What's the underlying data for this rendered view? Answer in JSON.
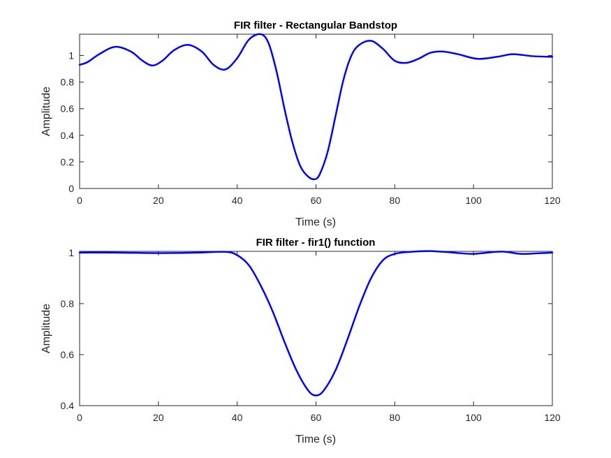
{
  "chart_data": [
    {
      "type": "line",
      "title": "FIR filter - Rectangular Bandstop",
      "xlabel": "Time (s)",
      "ylabel": "Amplitude",
      "xlim": [
        0,
        120
      ],
      "ylim": [
        0,
        1.16
      ],
      "xticks": [
        0,
        20,
        40,
        60,
        80,
        100,
        120
      ],
      "yticks": [
        0,
        0.2,
        0.4,
        0.6,
        0.8,
        1
      ],
      "xtick_labels": [
        "0",
        "20",
        "40",
        "60",
        "80",
        "100",
        "120"
      ],
      "ytick_labels": [
        "0",
        "0.2",
        "0.4",
        "0.6",
        "0.8",
        "1"
      ],
      "grid": false,
      "line_color": "#0000ff",
      "series": [
        {
          "x": [
            0,
            2,
            5,
            9,
            13,
            16,
            18.5,
            21,
            24,
            27.5,
            31,
            34,
            37,
            40,
            43,
            46,
            48,
            50,
            52,
            54,
            56,
            58,
            59.7,
            61,
            63,
            65,
            67,
            69,
            71,
            74,
            77,
            80,
            83,
            86,
            89,
            92,
            96,
            101,
            106,
            110,
            115,
            120
          ],
          "y": [
            0.93,
            0.95,
            1.01,
            1.065,
            1.03,
            0.96,
            0.925,
            0.96,
            1.04,
            1.08,
            1.03,
            0.93,
            0.895,
            0.98,
            1.12,
            1.16,
            1.09,
            0.88,
            0.6,
            0.35,
            0.17,
            0.09,
            0.07,
            0.11,
            0.28,
            0.55,
            0.82,
            1.0,
            1.08,
            1.11,
            1.05,
            0.96,
            0.945,
            0.975,
            1.02,
            1.03,
            1.01,
            0.975,
            0.99,
            1.01,
            0.995,
            0.99
          ]
        }
      ]
    },
    {
      "type": "line",
      "title": "FIR filter - fir1() function",
      "xlabel": "Time (s)",
      "ylabel": "Amplitude",
      "xlim": [
        0,
        120
      ],
      "ylim": [
        0.4,
        1.005
      ],
      "xticks": [
        0,
        20,
        40,
        60,
        80,
        100,
        120
      ],
      "yticks": [
        0.4,
        0.6,
        0.8,
        1
      ],
      "xtick_labels": [
        "0",
        "20",
        "40",
        "60",
        "80",
        "100",
        "120"
      ],
      "ytick_labels": [
        "0.4",
        "0.6",
        "0.8",
        "1"
      ],
      "grid": false,
      "line_color": "#0000ff",
      "series": [
        {
          "x": [
            0,
            10,
            20,
            30,
            37,
            40,
            43,
            46,
            49,
            52,
            55,
            58,
            60,
            62,
            65,
            68,
            71,
            74,
            77,
            80,
            84,
            89,
            95,
            100,
            107,
            112,
            116,
            120
          ],
          "y": [
            1.0,
            1.0,
            0.998,
            1.0,
            1.003,
            0.99,
            0.95,
            0.87,
            0.77,
            0.65,
            0.54,
            0.46,
            0.44,
            0.46,
            0.54,
            0.66,
            0.79,
            0.9,
            0.97,
            0.995,
            1.003,
            1.006,
            1.0,
            0.995,
            1.004,
            0.995,
            0.997,
            1.0
          ]
        }
      ]
    }
  ]
}
